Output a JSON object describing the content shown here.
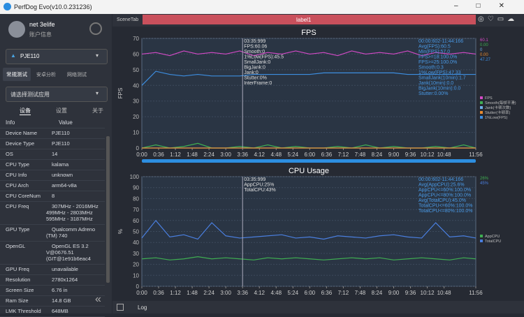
{
  "window": {
    "title": "PerfDog Evo(v10.0.231236)"
  },
  "user": {
    "name": "net 3elife",
    "account": "账户信息"
  },
  "device": {
    "name": "PJE110"
  },
  "tabs": [
    "常规测试",
    "安卓分析",
    "网络测试"
  ],
  "app_select": "请选择测试应用",
  "subtabs": [
    "设备",
    "设置",
    "关于"
  ],
  "info": {
    "header": [
      "Info",
      "Value"
    ],
    "rows": [
      [
        "Device Name",
        [
          "PJE110"
        ]
      ],
      [
        "Device Type",
        [
          "PJE110"
        ]
      ],
      [
        "OS",
        [
          "14"
        ]
      ],
      [
        "CPU Type",
        [
          "kalama"
        ]
      ],
      [
        "CPU Info",
        [
          "unknown"
        ]
      ],
      [
        "CPU Arch",
        [
          "arm64-v8a"
        ]
      ],
      [
        "CPU CoreNum",
        [
          "8"
        ]
      ],
      [
        "CPU Freq",
        [
          "307MHz - 2016MHz",
          "499MHz - 2803MHz",
          "595MHz - 3187MHz"
        ]
      ],
      [
        "GPU Type",
        [
          "Qualcomm Adreno",
          "(TM) 740"
        ]
      ],
      [
        "OpenGL",
        [
          "OpenGL ES 3.2",
          "V@0676.51",
          "(GIT@1e91b6eac4"
        ]
      ],
      [
        "GPU Freq",
        [
          "unavailable"
        ]
      ],
      [
        "Resolution",
        [
          "2780x1264"
        ]
      ],
      [
        "Screen Size",
        [
          "6.76 in"
        ]
      ],
      [
        "Ram Size",
        [
          "14.8 GB"
        ]
      ],
      [
        "LMK Threshold",
        [
          "648MB"
        ]
      ]
    ]
  },
  "scene": {
    "tab": "SceneTab",
    "label": "label1"
  },
  "log": "Log",
  "charts": [
    {
      "type": "line",
      "title": "FPS",
      "y_label": "FPS",
      "ylim": [
        0,
        70
      ],
      "yticks": [
        0,
        10,
        20,
        30,
        40,
        50,
        60,
        70
      ],
      "xlim": [
        0,
        716
      ],
      "xticks": [
        {
          "value": 0,
          "label": "0:00"
        },
        {
          "value": 36,
          "label": "0:36"
        },
        {
          "value": 72,
          "label": "1:12"
        },
        {
          "value": 108,
          "label": "1:48"
        },
        {
          "value": 144,
          "label": "2:24"
        },
        {
          "value": 180,
          "label": "3:00"
        },
        {
          "value": 216,
          "label": "3:36"
        },
        {
          "value": 252,
          "label": "4:12"
        },
        {
          "value": 288,
          "label": "4:48"
        },
        {
          "value": 324,
          "label": "5:24"
        },
        {
          "value": 360,
          "label": "6:00"
        },
        {
          "value": 396,
          "label": "6:36"
        },
        {
          "value": 432,
          "label": "7:12"
        },
        {
          "value": 468,
          "label": "7:48"
        },
        {
          "value": 504,
          "label": "8:24"
        },
        {
          "value": 540,
          "label": "9:00"
        },
        {
          "value": 576,
          "label": "9:36"
        },
        {
          "value": 612,
          "label": "10:12"
        },
        {
          "value": 648,
          "label": "10:48"
        },
        {
          "value": 716,
          "label": "11:56"
        }
      ],
      "cursor_x": 216,
      "cursor_text": [
        "03:35:999",
        "FPS:60.06",
        "Smooth:0",
        "1%Low(FPS):45.5",
        "SmallJank:0",
        "BigJank:0",
        "Jank:0",
        "Stutter:0%",
        "InterFrame:0"
      ],
      "stats_text": [
        "00:00:602-11:44:166",
        "Avg(FPS):60.5",
        "Min(FPS):57.0",
        "FPS>=18:100.0%",
        "FPS>=25:100.0%",
        "Smooth:0.3",
        "1%Low(FPS):47.33",
        "SmallJank(10min):1.7",
        "Jank(10min):0.0",
        "BigJank(10min):0.0",
        "Stutter:0.00%"
      ],
      "x": [
        0,
        30,
        60,
        90,
        120,
        150,
        180,
        210,
        240,
        270,
        300,
        330,
        360,
        390,
        420,
        450,
        480,
        510,
        540,
        570,
        600,
        630,
        660,
        690,
        716
      ],
      "series": [
        {
          "name": "FPS",
          "color": "#d34ac6",
          "current": "60.1",
          "values": [
            60,
            61,
            59,
            62,
            60,
            61,
            60,
            62,
            59,
            61,
            60,
            62,
            60,
            61,
            59,
            62,
            60,
            61,
            60,
            62,
            59,
            61,
            60,
            61,
            60
          ]
        },
        {
          "name": "Smooth(每帧平滑)",
          "color": "#3fae52",
          "current": "0.00",
          "values": [
            0,
            2,
            0,
            1,
            3,
            0,
            0,
            1,
            0,
            2,
            0,
            1,
            0,
            0,
            1,
            0,
            2,
            0,
            1,
            0,
            0,
            1,
            0,
            2,
            0
          ]
        },
        {
          "name": "Jank(卡顿次数)",
          "color": "#6fb0e8",
          "current": "0",
          "values": [
            0,
            0,
            0,
            0,
            0,
            0,
            0,
            0,
            0,
            0,
            0,
            0,
            0,
            0,
            0,
            0,
            0,
            0,
            0,
            0,
            0,
            0,
            0,
            0,
            0
          ]
        },
        {
          "name": "Stutter(卡顿率)",
          "color": "#e88a2e",
          "current": "0.00",
          "values": [
            0,
            0,
            0,
            0,
            0,
            0,
            0,
            0,
            0,
            0,
            0,
            0,
            0,
            0,
            0,
            0,
            0,
            0,
            0,
            0,
            0,
            0,
            0,
            0,
            0
          ]
        },
        {
          "name": "1%Low(FPS)",
          "color": "#3d8ee0",
          "current": "47.27",
          "values": [
            40,
            49,
            47,
            46,
            47,
            46,
            46,
            46,
            47,
            47,
            47,
            47,
            47,
            48,
            48,
            48,
            48,
            48,
            48,
            47,
            47,
            47,
            47,
            47,
            47
          ]
        }
      ]
    },
    {
      "type": "line",
      "title": "CPU Usage",
      "y_label": "%",
      "ylim": [
        0,
        100
      ],
      "yticks": [
        0,
        10,
        20,
        30,
        40,
        50,
        60,
        70,
        80,
        90,
        100
      ],
      "xlim": [
        0,
        716
      ],
      "xticks": [
        {
          "value": 0,
          "label": "0:00"
        },
        {
          "value": 36,
          "label": "0:36"
        },
        {
          "value": 72,
          "label": "1:12"
        },
        {
          "value": 108,
          "label": "1:48"
        },
        {
          "value": 144,
          "label": "2:24"
        },
        {
          "value": 180,
          "label": "3:00"
        },
        {
          "value": 216,
          "label": "3:36"
        },
        {
          "value": 252,
          "label": "4:12"
        },
        {
          "value": 288,
          "label": "4:48"
        },
        {
          "value": 324,
          "label": "5:24"
        },
        {
          "value": 360,
          "label": "6:00"
        },
        {
          "value": 396,
          "label": "6:36"
        },
        {
          "value": 432,
          "label": "7:12"
        },
        {
          "value": 468,
          "label": "7:48"
        },
        {
          "value": 504,
          "label": "8:24"
        },
        {
          "value": 540,
          "label": "9:00"
        },
        {
          "value": 576,
          "label": "9:36"
        },
        {
          "value": 612,
          "label": "10:12"
        },
        {
          "value": 648,
          "label": "10:48"
        },
        {
          "value": 716,
          "label": "11:56"
        }
      ],
      "cursor_x": 216,
      "cursor_text": [
        "03:35:999",
        "AppCPU:25%",
        "TotalCPU:43%"
      ],
      "stats_text": [
        "00:00:602-11:44:166",
        "Avg(AppCPU):25.6%",
        "AppCPU<=60%:100.0%",
        "AppCPU<=80%:100.0%",
        "Avg(TotalCPU):45.0%",
        "TotalCPU<=60%:100.0%",
        "TotalCPU<=80%:100.0%"
      ],
      "x": [
        0,
        30,
        60,
        90,
        120,
        150,
        180,
        210,
        240,
        270,
        300,
        330,
        360,
        390,
        420,
        450,
        480,
        510,
        540,
        570,
        600,
        630,
        660,
        690,
        716
      ],
      "series": [
        {
          "name": "AppCPU",
          "color": "#3fae52",
          "current": "26%",
          "values": [
            25,
            26,
            24,
            25,
            27,
            25,
            26,
            25,
            24,
            26,
            25,
            26,
            25,
            24,
            25,
            26,
            25,
            26,
            24,
            25,
            26,
            25,
            24,
            26,
            25
          ]
        },
        {
          "name": "TotalCPU",
          "color": "#4a7fe0",
          "current": "45%",
          "values": [
            44,
            60,
            45,
            47,
            43,
            58,
            46,
            44,
            45,
            46,
            47,
            44,
            45,
            43,
            46,
            45,
            44,
            46,
            47,
            45,
            44,
            58,
            45,
            46,
            44
          ]
        }
      ]
    }
  ]
}
